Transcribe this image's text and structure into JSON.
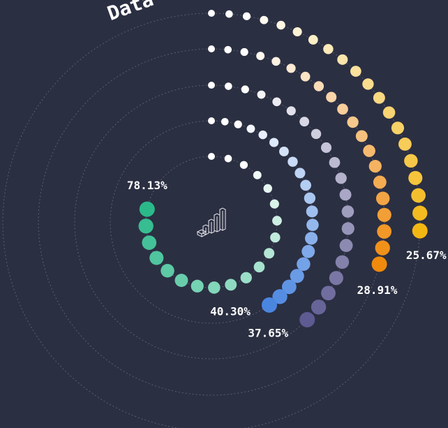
{
  "chart_data": {
    "type": "radial_dots",
    "title": "Data",
    "values": [
      78.13,
      40.3,
      37.65,
      28.91,
      25.67
    ],
    "value_labels": [
      "78.13%",
      "40.30%",
      "37.65%",
      "28.91%",
      "25.67%"
    ],
    "colors": [
      "#2bb98a",
      "#4a86e0",
      "#5e5a92",
      "#ef8a0c",
      "#f3b713"
    ],
    "xlim": [
      0,
      100
    ]
  }
}
